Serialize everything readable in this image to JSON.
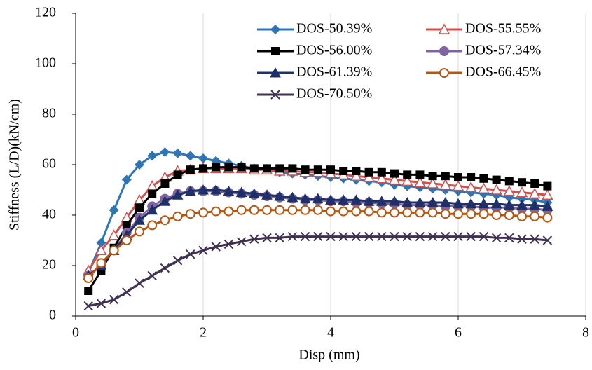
{
  "chart_data": {
    "type": "line",
    "x_label": "Disp (mm)",
    "y_label": "Stiffness (L/D)(kN/cm)",
    "xlim": [
      0,
      8
    ],
    "xticks": [
      0,
      2,
      4,
      6,
      8
    ],
    "ylim": [
      0,
      120
    ],
    "yticks": [
      0,
      20,
      40,
      60,
      80,
      100,
      120
    ],
    "grid": "x",
    "legend": "top-right",
    "x": [
      0.2,
      0.4,
      0.6,
      0.8,
      1.0,
      1.2,
      1.4,
      1.6,
      1.8,
      2.0,
      2.2,
      2.4,
      2.6,
      2.8,
      3.0,
      3.2,
      3.4,
      3.6,
      3.8,
      4.0,
      4.2,
      4.4,
      4.6,
      4.8,
      5.0,
      5.2,
      5.4,
      5.6,
      5.8,
      6.0,
      6.2,
      6.4,
      6.6,
      6.8,
      7.0,
      7.2,
      7.4
    ],
    "series": [
      {
        "name": "DOS-50.39%",
        "color": "#2E75B6",
        "marker": "diamond",
        "values": [
          17,
          29,
          42,
          54,
          60,
          63.5,
          65,
          64.5,
          63.5,
          62.5,
          61.5,
          60.5,
          59.5,
          58.5,
          58,
          57,
          56.5,
          56,
          55.5,
          55,
          54.5,
          54,
          53.5,
          53,
          52,
          51.5,
          51,
          50.5,
          50,
          49.5,
          49,
          48.5,
          48,
          47,
          46.5,
          46,
          45
        ]
      },
      {
        "name": "DOS-55.55%",
        "color": "#D0504D",
        "marker": "open-triangle",
        "values": [
          18,
          26,
          32,
          39,
          46,
          51.5,
          55,
          57.5,
          58,
          58.5,
          58.5,
          58.5,
          58.5,
          58,
          58,
          57.5,
          57.5,
          57,
          57,
          56.5,
          56,
          55.5,
          55,
          54.5,
          54,
          53.5,
          53,
          52.5,
          52,
          51.5,
          51,
          50.5,
          50,
          49.5,
          49,
          48.5,
          48
        ]
      },
      {
        "name": "DOS-56.00%",
        "color": "#000000",
        "marker": "square",
        "values": [
          10,
          18,
          27,
          36,
          43,
          48.5,
          52.5,
          56,
          58,
          58.5,
          59,
          59,
          59,
          58.5,
          58.5,
          58.5,
          58.5,
          58,
          58,
          58,
          57.5,
          57.5,
          57,
          57,
          56.5,
          56,
          56,
          55.5,
          55.5,
          55,
          55,
          54.5,
          54,
          53.5,
          53,
          52.5,
          51.5
        ]
      },
      {
        "name": "DOS-57.34%",
        "color": "#8064A2",
        "marker": "circle",
        "values": [
          16,
          20,
          26,
          33,
          39,
          43.5,
          46.5,
          48.5,
          49.5,
          49.5,
          49.5,
          49,
          48.5,
          48,
          47.5,
          47,
          46.5,
          46,
          46,
          45.5,
          45.5,
          45,
          45,
          44.5,
          44.5,
          44,
          44,
          44,
          43.5,
          43.5,
          43.5,
          43,
          43,
          43,
          42.5,
          42.5,
          42
        ]
      },
      {
        "name": "DOS-61.39%",
        "color": "#1F3068",
        "marker": "triangle",
        "values": [
          16,
          20,
          26,
          32,
          38,
          42,
          45.5,
          48,
          49.5,
          50,
          50,
          49.5,
          49,
          48.5,
          48,
          47.5,
          47,
          46.5,
          46.5,
          46,
          46,
          46,
          45.5,
          45.5,
          45.5,
          45,
          45,
          45,
          45,
          44.5,
          44.5,
          44.5,
          44.5,
          44,
          44,
          44,
          43.5
        ]
      },
      {
        "name": "DOS-66.45%",
        "color": "#B8560F",
        "marker": "open-circle",
        "values": [
          15,
          21,
          26,
          30,
          33.5,
          36,
          38,
          39.5,
          40.5,
          41,
          41.5,
          41.5,
          42,
          42,
          42,
          42,
          42,
          42,
          42,
          41.5,
          41.5,
          41.5,
          41.5,
          41,
          41,
          41,
          41,
          41,
          40.5,
          40.5,
          40.5,
          40.5,
          40,
          40,
          39.5,
          39.5,
          39
        ]
      },
      {
        "name": "DOS-70.50%",
        "color": "#403151",
        "marker": "x",
        "values": [
          4,
          5,
          6.5,
          9.5,
          13,
          16,
          19,
          22,
          24.5,
          26,
          27.5,
          28.5,
          29.5,
          30.5,
          31,
          31,
          31.5,
          31.5,
          31.5,
          31.5,
          31.5,
          31.5,
          31.5,
          31.5,
          31.5,
          31.5,
          31.5,
          31.5,
          31.5,
          31.5,
          31.5,
          31.5,
          31,
          31,
          30.5,
          30.5,
          30
        ]
      }
    ]
  }
}
